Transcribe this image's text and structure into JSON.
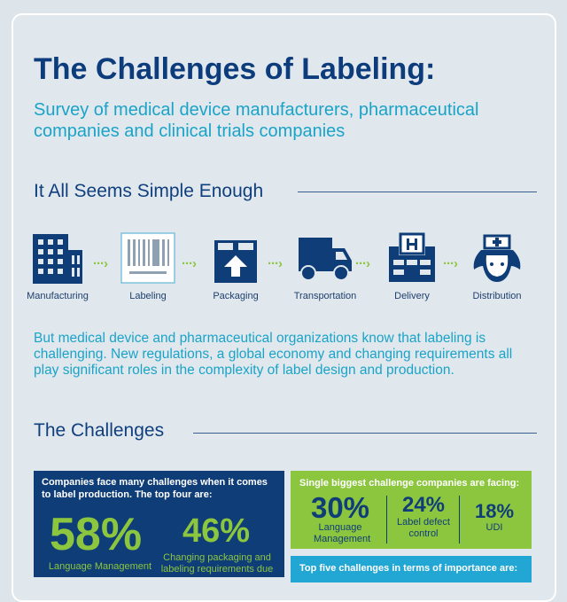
{
  "title": "The Challenges of Labeling:",
  "subtitle": "Survey of medical device manufacturers, pharmaceutical companies and clinical trials companies",
  "section1": {
    "heading": "It All Seems Simple Enough",
    "steps": [
      {
        "label": "Manufacturing",
        "icon": "factory-icon"
      },
      {
        "label": "Labeling",
        "icon": "barcode-icon"
      },
      {
        "label": "Packaging",
        "icon": "box-icon"
      },
      {
        "label": "Transportation",
        "icon": "truck-icon"
      },
      {
        "label": "Delivery",
        "icon": "hospital-icon"
      },
      {
        "label": "Distribution",
        "icon": "nurse-icon"
      }
    ],
    "paragraph": "But medical device and pharmaceutical organizations know that labeling is challenging. New regulations, a global economy and changing requirements all play significant roles in the complexity of label design and production."
  },
  "section2": {
    "heading": "The Challenges",
    "top_four": {
      "intro": "Companies face many challenges when it comes to label production. The top four are:",
      "items": [
        {
          "value": "58%",
          "label": "Language Management"
        },
        {
          "value": "46%",
          "label": "Changing packaging and labeling requirements due"
        }
      ]
    },
    "biggest": {
      "intro": "Single biggest challenge companies are facing:",
      "items": [
        {
          "value": "30%",
          "label": "Language Management"
        },
        {
          "value": "24%",
          "label": "Label defect control"
        },
        {
          "value": "18%",
          "label": "UDI"
        }
      ]
    },
    "top_five": {
      "intro": "Top five challenges in terms of importance are:"
    }
  },
  "colors": {
    "navy": "#0f3d78",
    "green": "#8cc63f",
    "teal": "#1aa3c8",
    "background": "#e1e8ed"
  }
}
